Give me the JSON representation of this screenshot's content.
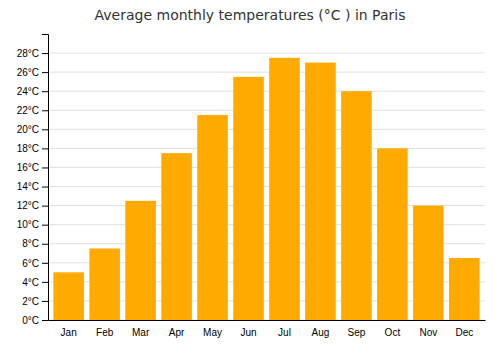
{
  "chart_data": {
    "type": "bar",
    "title": "Average monthly temperatures (°C ) in Paris",
    "categories": [
      "Jan",
      "Feb",
      "Mar",
      "Apr",
      "May",
      "Jun",
      "Jul",
      "Aug",
      "Sep",
      "Oct",
      "Nov",
      "Dec"
    ],
    "values": [
      5.0,
      7.5,
      12.5,
      17.5,
      21.5,
      25.5,
      27.5,
      27.0,
      24.0,
      18.0,
      12.0,
      6.5
    ],
    "color": "#FFAA00",
    "ylim": [
      0,
      30
    ],
    "yticks": [
      {
        "value": 0,
        "label": "0°C"
      },
      {
        "value": 2,
        "label": "2°C"
      },
      {
        "value": 4,
        "label": "4°C"
      },
      {
        "value": 6,
        "label": "6°C"
      },
      {
        "value": 8,
        "label": "8°C"
      },
      {
        "value": 10,
        "label": "10°C"
      },
      {
        "value": 12,
        "label": "12°C"
      },
      {
        "value": 14,
        "label": "14°C"
      },
      {
        "value": 16,
        "label": "16°C"
      },
      {
        "value": 18,
        "label": "18°C"
      },
      {
        "value": 20,
        "label": "20°C"
      },
      {
        "value": 22,
        "label": "22°C"
      },
      {
        "value": 24,
        "label": "24°C"
      },
      {
        "value": 26,
        "label": "26°C"
      },
      {
        "value": 28,
        "label": "28°C"
      }
    ],
    "grid": true
  }
}
